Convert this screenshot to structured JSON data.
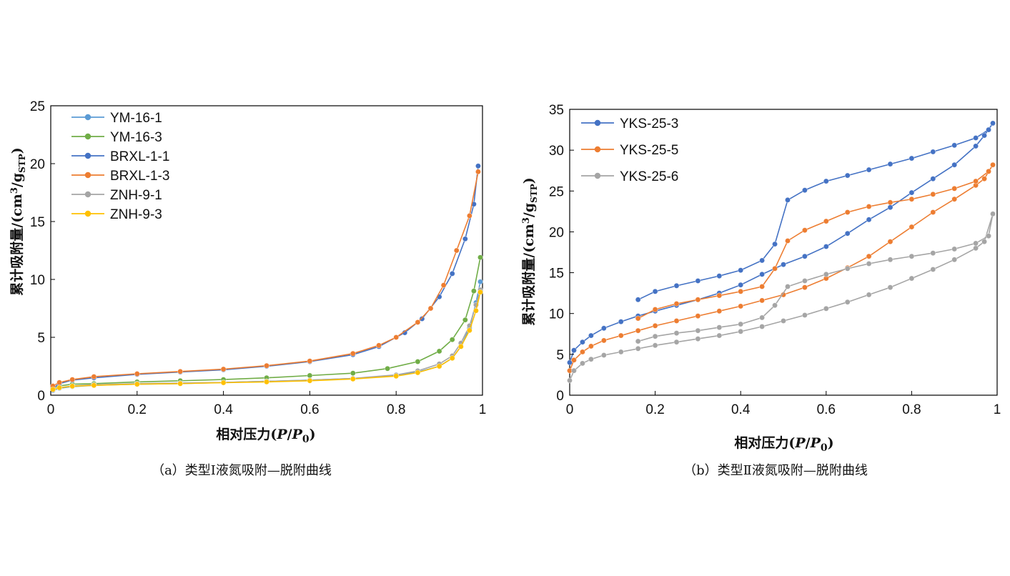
{
  "chart_data": [
    {
      "type": "line",
      "caption": "（a）类型Ⅰ液氮吸附—脱附曲线",
      "xlabel": "相对压力",
      "xlabel_var": "P/P0",
      "ylabel": "累计吸附量",
      "ylabel_unit": "(cm³/gSTP)",
      "xlim": [
        0,
        1
      ],
      "ylim": [
        0,
        25
      ],
      "xticks": [
        "0",
        "0.2",
        "0.4",
        "0.6",
        "0.8",
        "1"
      ],
      "yticks": [
        "0",
        "5",
        "10",
        "15",
        "20",
        "25"
      ],
      "grid": false,
      "legend_position": "top-left",
      "series": [
        {
          "name": "YM-16-1",
          "color": "#5b9bd5",
          "x": [
            0.005,
            0.02,
            0.05,
            0.1,
            0.2,
            0.3,
            0.4,
            0.5,
            0.6,
            0.7,
            0.8,
            0.85,
            0.9,
            0.93,
            0.95,
            0.97,
            0.985,
            0.995
          ],
          "y": [
            0.4,
            0.6,
            0.75,
            0.85,
            0.95,
            1.0,
            1.1,
            1.2,
            1.3,
            1.45,
            1.7,
            2.0,
            2.5,
            3.2,
            4.2,
            5.8,
            8.0,
            9.8
          ]
        },
        {
          "name": "YM-16-3",
          "color": "#70ad47",
          "x": [
            0.005,
            0.02,
            0.05,
            0.1,
            0.2,
            0.3,
            0.4,
            0.5,
            0.6,
            0.7,
            0.78,
            0.85,
            0.9,
            0.93,
            0.96,
            0.98,
            0.995
          ],
          "y": [
            0.6,
            0.8,
            0.95,
            1.0,
            1.15,
            1.25,
            1.35,
            1.5,
            1.7,
            1.9,
            2.3,
            2.9,
            3.8,
            4.8,
            6.5,
            9.0,
            11.9
          ]
        },
        {
          "name": "BRXL-1-1",
          "color": "#4472c4",
          "x": [
            0.005,
            0.02,
            0.05,
            0.1,
            0.2,
            0.3,
            0.4,
            0.5,
            0.6,
            0.7,
            0.76,
            0.82,
            0.86,
            0.9,
            0.93,
            0.96,
            0.98,
            0.99
          ],
          "y": [
            0.6,
            1.0,
            1.3,
            1.5,
            1.8,
            2.0,
            2.2,
            2.5,
            2.9,
            3.5,
            4.2,
            5.4,
            6.6,
            8.5,
            10.5,
            13.5,
            16.5,
            19.8
          ]
        },
        {
          "name": "BRXL-1-3",
          "color": "#ed7d31",
          "x": [
            0.005,
            0.02,
            0.05,
            0.1,
            0.2,
            0.3,
            0.4,
            0.5,
            0.6,
            0.7,
            0.76,
            0.8,
            0.85,
            0.88,
            0.91,
            0.94,
            0.97,
            0.99
          ],
          "y": [
            0.8,
            1.1,
            1.35,
            1.6,
            1.85,
            2.05,
            2.25,
            2.55,
            2.95,
            3.6,
            4.3,
            5.0,
            6.3,
            7.5,
            9.5,
            12.5,
            15.5,
            19.3
          ]
        },
        {
          "name": "ZNH-9-1",
          "color": "#a5a5a5",
          "x": [
            0.005,
            0.02,
            0.05,
            0.1,
            0.2,
            0.3,
            0.4,
            0.5,
            0.6,
            0.7,
            0.8,
            0.85,
            0.9,
            0.93,
            0.95,
            0.97,
            0.985,
            0.995
          ],
          "y": [
            0.45,
            0.65,
            0.8,
            0.9,
            1.0,
            1.05,
            1.1,
            1.2,
            1.3,
            1.45,
            1.75,
            2.1,
            2.7,
            3.4,
            4.5,
            6.0,
            7.8,
            9.1
          ]
        },
        {
          "name": "ZNH-9-3",
          "color": "#ffc000",
          "x": [
            0.005,
            0.02,
            0.05,
            0.1,
            0.2,
            0.3,
            0.4,
            0.5,
            0.6,
            0.7,
            0.8,
            0.85,
            0.9,
            0.93,
            0.95,
            0.97,
            0.985,
            0.995
          ],
          "y": [
            0.5,
            0.65,
            0.78,
            0.85,
            0.95,
            1.0,
            1.08,
            1.15,
            1.25,
            1.4,
            1.65,
            1.95,
            2.5,
            3.2,
            4.2,
            5.6,
            7.3,
            8.9
          ]
        }
      ]
    },
    {
      "type": "line",
      "caption": "（b）类型Ⅱ液氮吸附—脱附曲线",
      "xlabel": "相对压力",
      "xlabel_var": "P/P0",
      "ylabel": "累计吸附量",
      "ylabel_unit": "(cm³/gSTP)",
      "xlim": [
        0,
        1
      ],
      "ylim": [
        0,
        35
      ],
      "xticks": [
        "0",
        "0.2",
        "0.4",
        "0.6",
        "0.8",
        "1"
      ],
      "yticks": [
        "0",
        "5",
        "10",
        "15",
        "20",
        "25",
        "30",
        "35"
      ],
      "grid": false,
      "legend_position": "top-left",
      "series": [
        {
          "name": "YKS-25-3",
          "color": "#4472c4",
          "x": [
            0.0,
            0.01,
            0.03,
            0.05,
            0.08,
            0.12,
            0.16,
            0.2,
            0.25,
            0.3,
            0.35,
            0.4,
            0.45,
            0.5,
            0.55,
            0.6,
            0.65,
            0.7,
            0.75,
            0.8,
            0.85,
            0.9,
            0.95,
            0.97,
            0.99,
            0.98,
            0.95,
            0.9,
            0.85,
            0.8,
            0.75,
            0.7,
            0.65,
            0.6,
            0.55,
            0.51,
            0.48,
            0.45,
            0.4,
            0.35,
            0.3,
            0.25,
            0.2,
            0.16
          ],
          "y": [
            4.0,
            5.5,
            6.5,
            7.3,
            8.2,
            9.0,
            9.7,
            10.3,
            11.0,
            11.7,
            12.5,
            13.5,
            14.8,
            16.0,
            17.0,
            18.2,
            19.8,
            21.5,
            23.0,
            24.8,
            26.5,
            28.2,
            30.5,
            31.8,
            33.3,
            32.5,
            31.5,
            30.6,
            29.8,
            29.0,
            28.3,
            27.6,
            26.9,
            26.2,
            25.1,
            23.9,
            18.5,
            16.5,
            15.3,
            14.6,
            14.0,
            13.4,
            12.7,
            11.7
          ]
        },
        {
          "name": "YKS-25-5",
          "color": "#ed7d31",
          "x": [
            0.0,
            0.01,
            0.03,
            0.05,
            0.08,
            0.12,
            0.16,
            0.2,
            0.25,
            0.3,
            0.35,
            0.4,
            0.45,
            0.5,
            0.55,
            0.6,
            0.65,
            0.7,
            0.75,
            0.8,
            0.85,
            0.9,
            0.95,
            0.97,
            0.99,
            0.98,
            0.95,
            0.9,
            0.85,
            0.8,
            0.75,
            0.7,
            0.65,
            0.6,
            0.55,
            0.51,
            0.48,
            0.45,
            0.4,
            0.35,
            0.3,
            0.25,
            0.2,
            0.16
          ],
          "y": [
            3.0,
            4.3,
            5.3,
            6.0,
            6.7,
            7.3,
            7.9,
            8.5,
            9.1,
            9.7,
            10.3,
            10.9,
            11.6,
            12.3,
            13.2,
            14.3,
            15.6,
            17.0,
            18.8,
            20.6,
            22.4,
            24.0,
            25.7,
            26.5,
            28.2,
            27.4,
            26.2,
            25.3,
            24.6,
            24.0,
            23.6,
            23.1,
            22.4,
            21.3,
            20.2,
            18.9,
            15.5,
            13.3,
            12.7,
            12.2,
            11.7,
            11.2,
            10.5,
            9.4
          ]
        },
        {
          "name": "YKS-25-6",
          "color": "#a5a5a5",
          "x": [
            0.0,
            0.01,
            0.03,
            0.05,
            0.08,
            0.12,
            0.16,
            0.2,
            0.25,
            0.3,
            0.35,
            0.4,
            0.45,
            0.5,
            0.55,
            0.6,
            0.65,
            0.7,
            0.75,
            0.8,
            0.85,
            0.9,
            0.95,
            0.97,
            0.99,
            0.98,
            0.95,
            0.9,
            0.85,
            0.8,
            0.75,
            0.7,
            0.65,
            0.6,
            0.55,
            0.51,
            0.48,
            0.45,
            0.4,
            0.35,
            0.3,
            0.25,
            0.2,
            0.16
          ],
          "y": [
            1.8,
            3.0,
            3.9,
            4.4,
            4.9,
            5.3,
            5.7,
            6.1,
            6.5,
            6.9,
            7.3,
            7.8,
            8.4,
            9.1,
            9.8,
            10.6,
            11.4,
            12.3,
            13.2,
            14.3,
            15.4,
            16.6,
            18.0,
            18.8,
            22.2,
            19.5,
            18.6,
            17.9,
            17.4,
            17.0,
            16.6,
            16.1,
            15.5,
            14.8,
            14.0,
            13.3,
            11.0,
            9.5,
            8.7,
            8.3,
            7.9,
            7.6,
            7.2,
            6.6
          ]
        }
      ]
    }
  ]
}
